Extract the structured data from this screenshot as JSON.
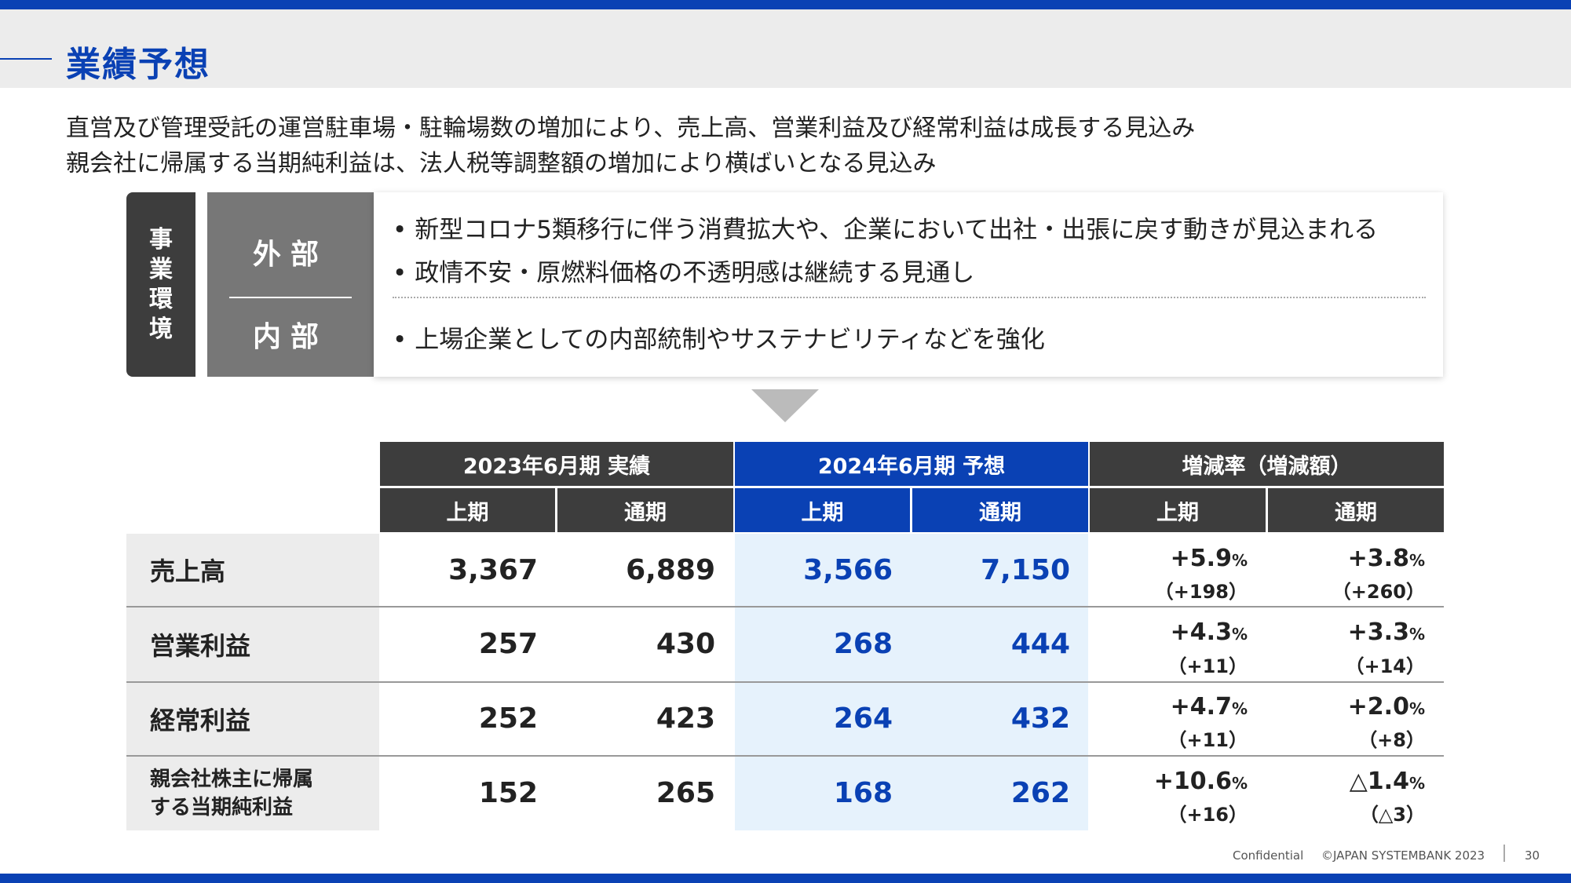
{
  "title": "業績予想",
  "lead": [
    "直営及び管理受託の運営駐車場・駐輪場数の増加により、売上高、営業利益及び経常利益は成長する見込み",
    "親会社に帰属する当期純利益は、法人税等調整額の増加により横ばいとなる見込み"
  ],
  "environment": {
    "label_chars": [
      "事",
      "業",
      "環",
      "境"
    ],
    "external_label": "外部",
    "internal_label": "内部",
    "bullet": "•",
    "external_items": [
      "新型コロナ5類移行に伴う消費拡大や、企業において出社・出張に戻す動きが見込まれる",
      "政情不安・原燃料価格の不透明感は継続する見通し"
    ],
    "internal_items": [
      "上場企業としての内部統制やサステナビリティなどを強化"
    ]
  },
  "table": {
    "groups": [
      "2023年6月期 実績",
      "2024年6月期 予想",
      "増減率（増減額）"
    ],
    "subheaders": [
      "上期",
      "通期",
      "上期",
      "通期",
      "上期",
      "通期"
    ],
    "rows": [
      {
        "label": "売上高",
        "values": [
          "3,367",
          "6,889",
          "3,566",
          "7,150"
        ],
        "rates": [
          "+5.9",
          "+3.8"
        ],
        "amounts": [
          "（+198）",
          "（+260）"
        ]
      },
      {
        "label": "営業利益",
        "values": [
          "257",
          "430",
          "268",
          "444"
        ],
        "rates": [
          "+4.3",
          "+3.3"
        ],
        "amounts": [
          "（+11）",
          "（+14）"
        ]
      },
      {
        "label": "経常利益",
        "values": [
          "252",
          "423",
          "264",
          "432"
        ],
        "rates": [
          "+4.7",
          "+2.0"
        ],
        "amounts": [
          "（+11）",
          "（+8）"
        ]
      },
      {
        "label": "親会社株主に帰属\nする当期純利益",
        "label_line1": "親会社株主に帰属",
        "label_line2": "する当期純利益",
        "values": [
          "152",
          "265",
          "168",
          "262"
        ],
        "rates": [
          "+10.6",
          "△1.4"
        ],
        "amounts": [
          "（+16）",
          "（△3）"
        ]
      }
    ],
    "pct": "%"
  },
  "footer": {
    "confidential": "Confidential",
    "copyright": "©JAPAN SYSTEMBANK 2023",
    "page": "30"
  },
  "colors": {
    "brand_blue": "#0a41b4",
    "dark_gray": "#3d3d3d",
    "light_blue": "#e6f2fc"
  }
}
